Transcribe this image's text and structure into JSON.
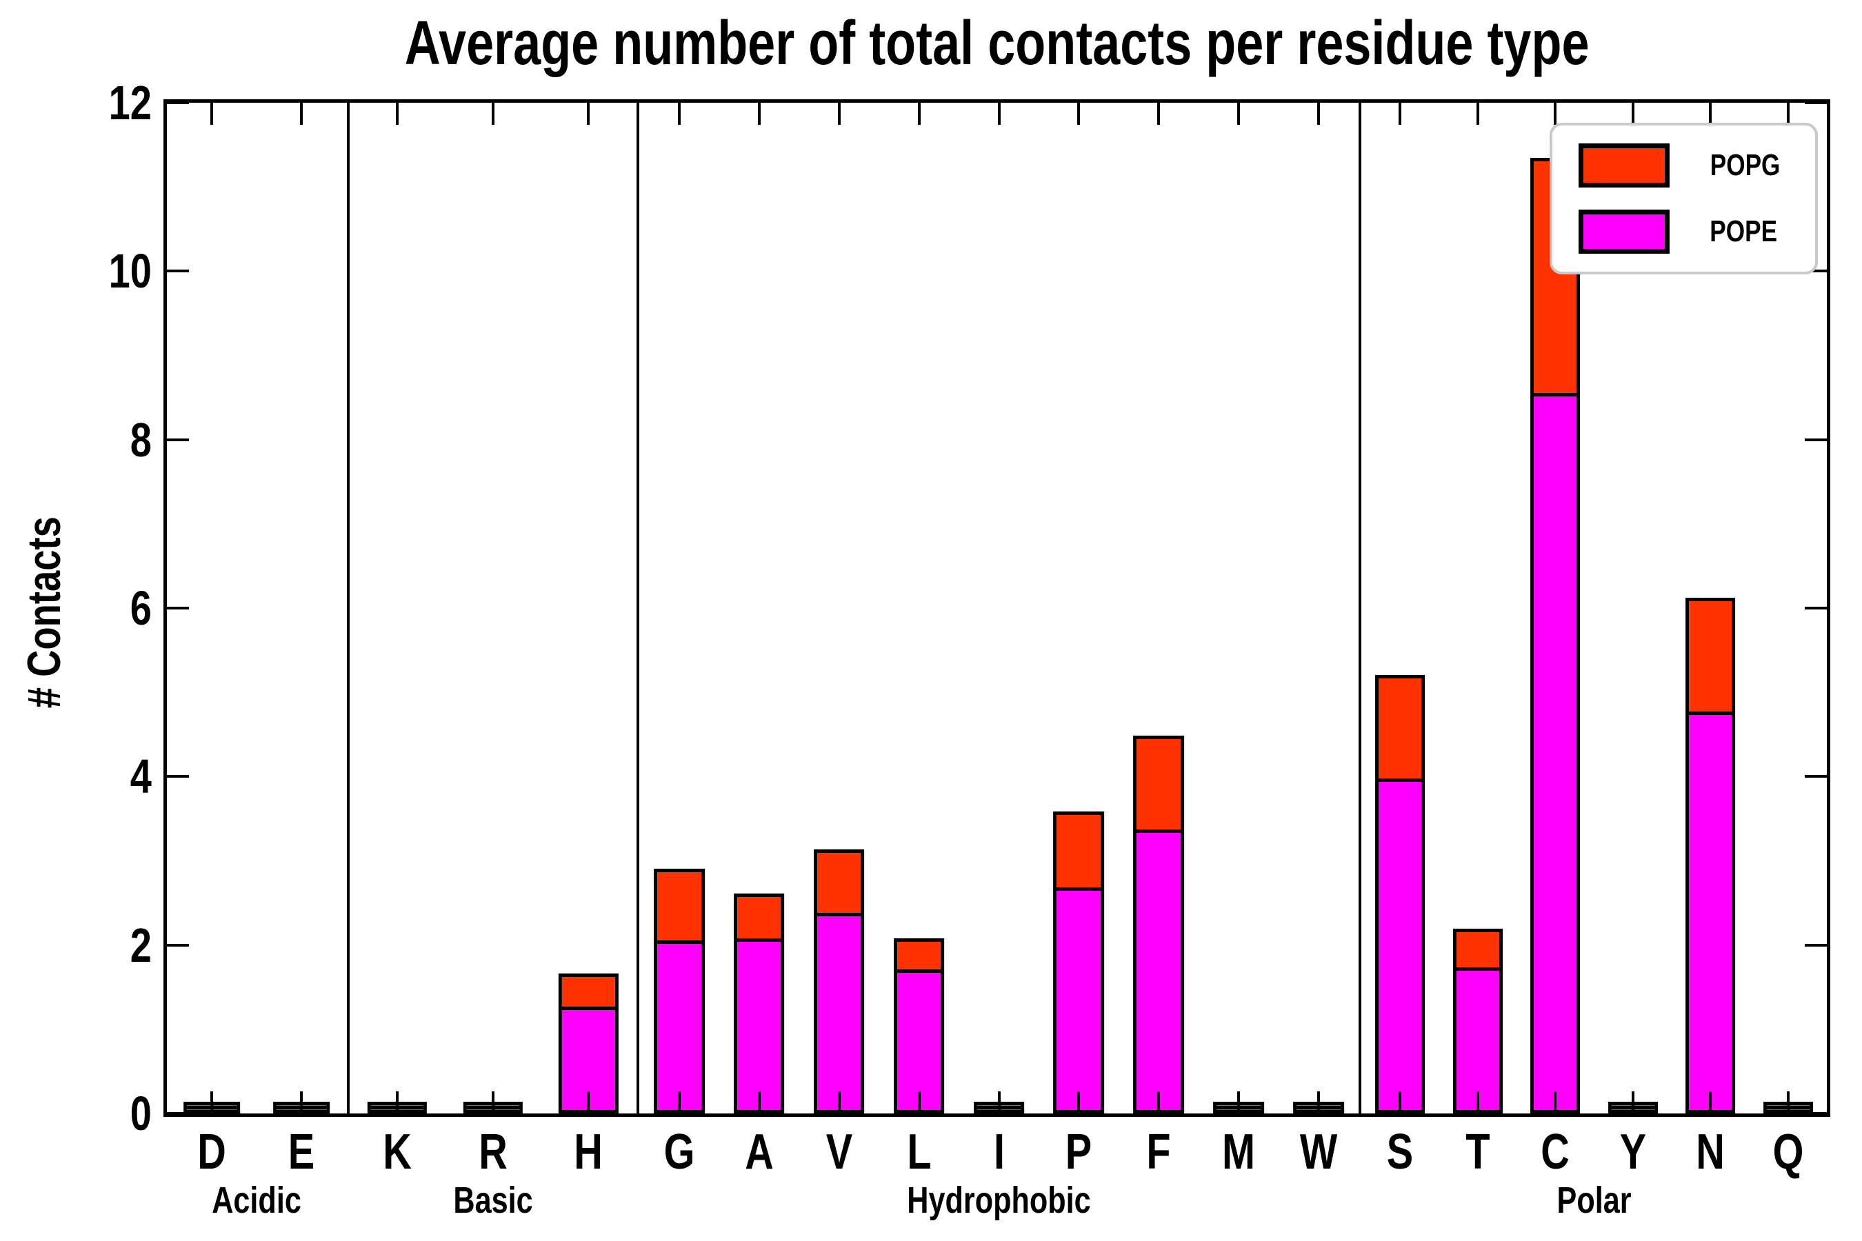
{
  "title": "Average number of total contacts per residue type",
  "y_axis": {
    "label": "# Contacts",
    "min": 0,
    "max": 12,
    "ticks": [
      "0",
      "2",
      "4",
      "6",
      "8",
      "10",
      "12"
    ]
  },
  "legend": {
    "entries": [
      {
        "label": "POPG",
        "color": "#ff3300"
      },
      {
        "label": "POPE",
        "color": "#ff00ff"
      }
    ]
  },
  "chart_data": {
    "type": "bar",
    "stacked": true,
    "title": "Average number of total contacts per residue type",
    "xlabel": "",
    "ylabel": "# Contacts",
    "ylim": [
      0,
      12
    ],
    "grid": false,
    "legend_position": "upper right",
    "series_order_bottom_to_top": [
      "POPE",
      "POPG"
    ],
    "colors": {
      "POPE": "#ff00ff",
      "POPG": "#ff3300"
    },
    "groups": [
      {
        "name": "Acidic",
        "residues": [
          {
            "label": "D",
            "POPE": 0.01,
            "POPG": 0.01
          },
          {
            "label": "E",
            "POPE": 0.01,
            "POPG": 0.01
          }
        ]
      },
      {
        "name": "Basic",
        "residues": [
          {
            "label": "K",
            "POPE": 0.01,
            "POPG": 0.01
          },
          {
            "label": "R",
            "POPE": 0.01,
            "POPG": 0.01
          },
          {
            "label": "H",
            "POPE": 1.19,
            "POPG": 0.35
          }
        ]
      },
      {
        "name": "Hydrophobic",
        "residues": [
          {
            "label": "G",
            "POPE": 1.97,
            "POPG": 0.81
          },
          {
            "label": "A",
            "POPE": 2.0,
            "POPG": 0.49
          },
          {
            "label": "V",
            "POPE": 2.3,
            "POPG": 0.71
          },
          {
            "label": "L",
            "POPE": 1.63,
            "POPG": 0.33
          },
          {
            "label": "I",
            "POPE": 0.01,
            "POPG": 0.01
          },
          {
            "label": "P",
            "POPE": 2.6,
            "POPG": 0.86
          },
          {
            "label": "F",
            "POPE": 3.29,
            "POPG": 1.07
          },
          {
            "label": "M",
            "POPE": 0.01,
            "POPG": 0.01
          },
          {
            "label": "W",
            "POPE": 0.01,
            "POPG": 0.01
          }
        ]
      },
      {
        "name": "Polar",
        "residues": [
          {
            "label": "S",
            "POPE": 3.9,
            "POPG": 1.18
          },
          {
            "label": "T",
            "POPE": 1.65,
            "POPG": 0.42
          },
          {
            "label": "C",
            "POPE": 8.47,
            "POPG": 2.75
          },
          {
            "label": "Y",
            "POPE": 0.01,
            "POPG": 0.01
          },
          {
            "label": "N",
            "POPE": 4.69,
            "POPG": 1.31
          },
          {
            "label": "Q",
            "POPE": 0.01,
            "POPG": 0.01
          }
        ]
      }
    ]
  }
}
